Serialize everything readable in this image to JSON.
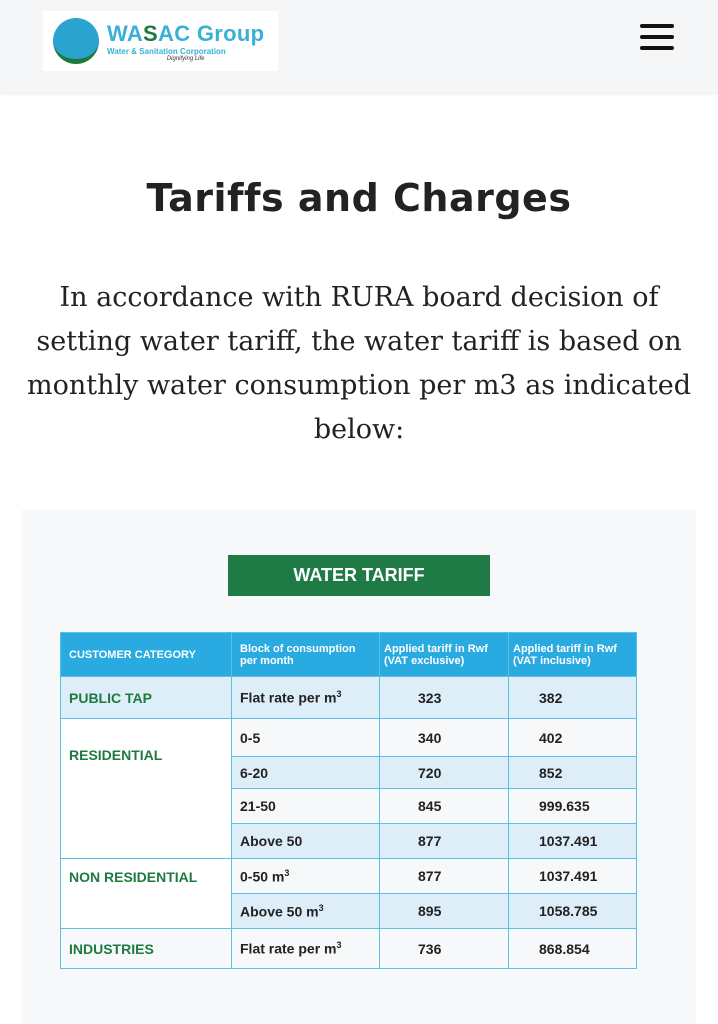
{
  "header": {
    "logo": {
      "title_a": "WA",
      "title_s": "S",
      "title_b": "AC Group",
      "subtitle": "Water & Sanitation Corporation",
      "tagline": "Dignifying Life"
    },
    "menu_icon": "hamburger-icon"
  },
  "page": {
    "title": "Tariffs and Charges",
    "intro": "In accordance with RURA board decision of setting water tariff, the water tariff is based on monthly water consumption per m3 as indicated below:"
  },
  "tariff": {
    "banner": "WATER TARIFF",
    "columns": [
      "CUSTOMER CATEGORY",
      "Block of consumption per month",
      "Applied tariff in Rwf (VAT exclusive)",
      "Applied tariff in Rwf (VAT inclusive)"
    ],
    "categories": [
      "PUBLIC TAP",
      "RESIDENTIAL",
      "NON RESIDENTIAL",
      "INDUSTRIES"
    ],
    "rows": [
      {
        "block": "Flat rate per m",
        "sup": "3",
        "excl": "323",
        "incl": "382"
      },
      {
        "block": "0-5",
        "excl": "340",
        "incl": "402"
      },
      {
        "block": "6-20",
        "excl": "720",
        "incl": "852"
      },
      {
        "block": "21-50",
        "excl": "845",
        "incl": "999.635"
      },
      {
        "block": "Above 50",
        "excl": "877",
        "incl": "1037.491"
      },
      {
        "block": "0-50 m",
        "sup": "3",
        "excl": "877",
        "incl": "1037.491"
      },
      {
        "block": "Above 50 m",
        "sup": "3",
        "excl": "895",
        "incl": "1058.785"
      },
      {
        "block": "Flat rate per m",
        "sup": "3",
        "excl": "736",
        "incl": "868.854"
      }
    ],
    "colors": {
      "header": "#29abe2",
      "banner": "#207a45",
      "category_text": "#1f7a40",
      "highlight_row": "#ddeef8"
    }
  }
}
